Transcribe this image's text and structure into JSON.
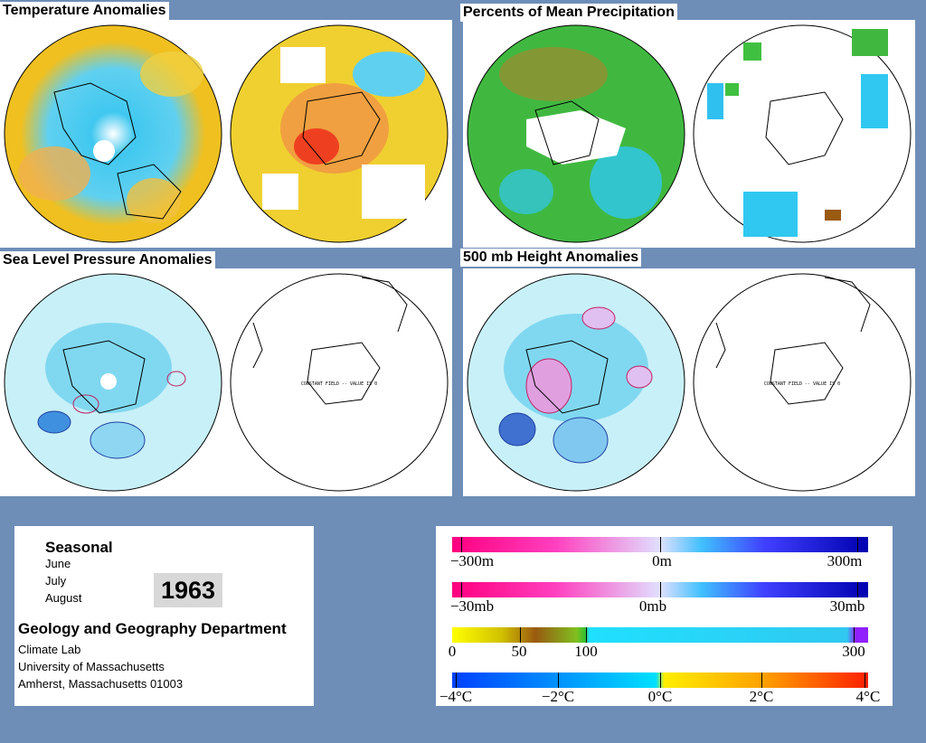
{
  "panels": {
    "temperature": {
      "title": "Temperature Anomalies"
    },
    "precipitation": {
      "title": "Percents of Mean Precipitation"
    },
    "slp": {
      "title": "Sea Level Pressure Anomalies",
      "southern_note": "CONSTANT FIELD -- VALUE IS 0"
    },
    "height500": {
      "title": "500 mb Height Anomalies",
      "southern_note": "CONSTANT FIELD -- VALUE IS 0"
    }
  },
  "info": {
    "period_label": "Seasonal",
    "months": [
      "June",
      "July",
      "August"
    ],
    "year": "1963",
    "department": "Geology and Geography Department",
    "address": [
      "Climate Lab",
      "University of Massachusetts",
      "Amherst, Massachusetts 01003"
    ]
  },
  "legends": [
    {
      "name": "height",
      "labels": [
        "−300m",
        "0m",
        "300m"
      ],
      "colors": [
        "#ff007f",
        "#e0e0ff",
        "#0000b0"
      ]
    },
    {
      "name": "pressure",
      "labels": [
        "−30mb",
        "0mb",
        "30mb"
      ],
      "colors": [
        "#ff007f",
        "#e0e0ff",
        "#0000b0"
      ]
    },
    {
      "name": "precip",
      "labels": [
        "0",
        "50",
        "100",
        "300"
      ],
      "colors": [
        "#ffff00",
        "#9a5a10",
        "#20e0ff",
        "#9020ff"
      ]
    },
    {
      "name": "temp",
      "labels": [
        "−4°C",
        "−2°C",
        "0°C",
        "2°C",
        "4°C"
      ],
      "colors": [
        "#0050ff",
        "#00e0ff",
        "#ffee00",
        "#ff0000"
      ]
    }
  ]
}
